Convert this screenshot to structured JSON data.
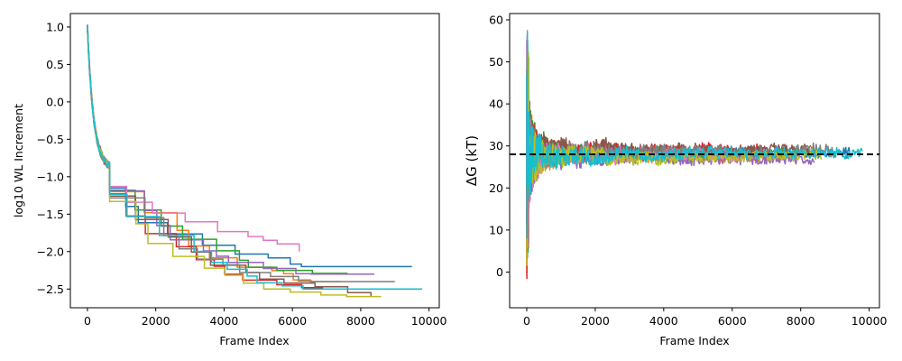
{
  "chart_data": [
    {
      "type": "line",
      "xlabel": "Frame Index",
      "ylabel": "log10 WL Increment",
      "xlim": [
        -500,
        10300
      ],
      "ylim": [
        -2.75,
        1.18
      ],
      "x_ticks": [
        0,
        2000,
        4000,
        6000,
        8000,
        10000
      ],
      "x_tick_labels": [
        "0",
        "2000",
        "4000",
        "6000",
        "8000",
        "10000"
      ],
      "y_ticks": [
        1.0,
        0.5,
        0.0,
        -0.5,
        -1.0,
        -1.5,
        -2.0,
        -2.5
      ],
      "y_tick_labels": [
        "1.0",
        "0.5",
        "0.0",
        "−0.5",
        "−1.0",
        "−1.5",
        "−2.0",
        "−2.5"
      ],
      "grid": false,
      "series": [
        {
          "color": "#1f77b4",
          "end_frame": 9500,
          "final_value": -2.2
        },
        {
          "color": "#ff7f0e",
          "end_frame": 7400,
          "final_value": -2.4
        },
        {
          "color": "#2ca02c",
          "end_frame": 7900,
          "final_value": -2.3
        },
        {
          "color": "#d62728",
          "end_frame": 6900,
          "final_value": -2.5
        },
        {
          "color": "#9467bd",
          "end_frame": 8400,
          "final_value": -2.3
        },
        {
          "color": "#8c564b",
          "end_frame": 8300,
          "final_value": -2.6
        },
        {
          "color": "#e377c2",
          "end_frame": 6200,
          "final_value": -2.0
        },
        {
          "color": "#7f7f7f",
          "end_frame": 9000,
          "final_value": -2.4
        },
        {
          "color": "#bcbd22",
          "end_frame": 8600,
          "final_value": -2.6
        },
        {
          "color": "#17becf",
          "end_frame": 9800,
          "final_value": -2.5
        }
      ]
    },
    {
      "type": "line",
      "xlabel": "Frame Index",
      "ylabel": "ΔG (kT)",
      "xlim": [
        -500,
        10300
      ],
      "ylim": [
        -8.5,
        61.5
      ],
      "x_ticks": [
        0,
        2000,
        4000,
        6000,
        8000,
        10000
      ],
      "x_tick_labels": [
        "0",
        "2000",
        "4000",
        "6000",
        "8000",
        "10000"
      ],
      "y_ticks": [
        0,
        10,
        20,
        30,
        40,
        50,
        60
      ],
      "y_tick_labels": [
        "0",
        "10",
        "20",
        "30",
        "40",
        "50",
        "60"
      ],
      "grid": false,
      "reference_line": {
        "y": 28,
        "style": "dashed",
        "color": "#000000"
      },
      "series": [
        {
          "color": "#1f77b4",
          "end_frame": 9500,
          "final_value": 28.0
        },
        {
          "color": "#ff7f0e",
          "end_frame": 7400,
          "final_value": 27.5
        },
        {
          "color": "#2ca02c",
          "end_frame": 7900,
          "final_value": 28.5
        },
        {
          "color": "#d62728",
          "end_frame": 6900,
          "final_value": 29.0
        },
        {
          "color": "#9467bd",
          "end_frame": 8400,
          "final_value": 27.0
        },
        {
          "color": "#8c564b",
          "end_frame": 8300,
          "final_value": 29.0
        },
        {
          "color": "#e377c2",
          "end_frame": 6200,
          "final_value": 28.0
        },
        {
          "color": "#7f7f7f",
          "end_frame": 9000,
          "final_value": 28.5
        },
        {
          "color": "#bcbd22",
          "end_frame": 8600,
          "final_value": 27.5
        },
        {
          "color": "#17becf",
          "end_frame": 9800,
          "final_value": 28.0
        }
      ]
    }
  ]
}
